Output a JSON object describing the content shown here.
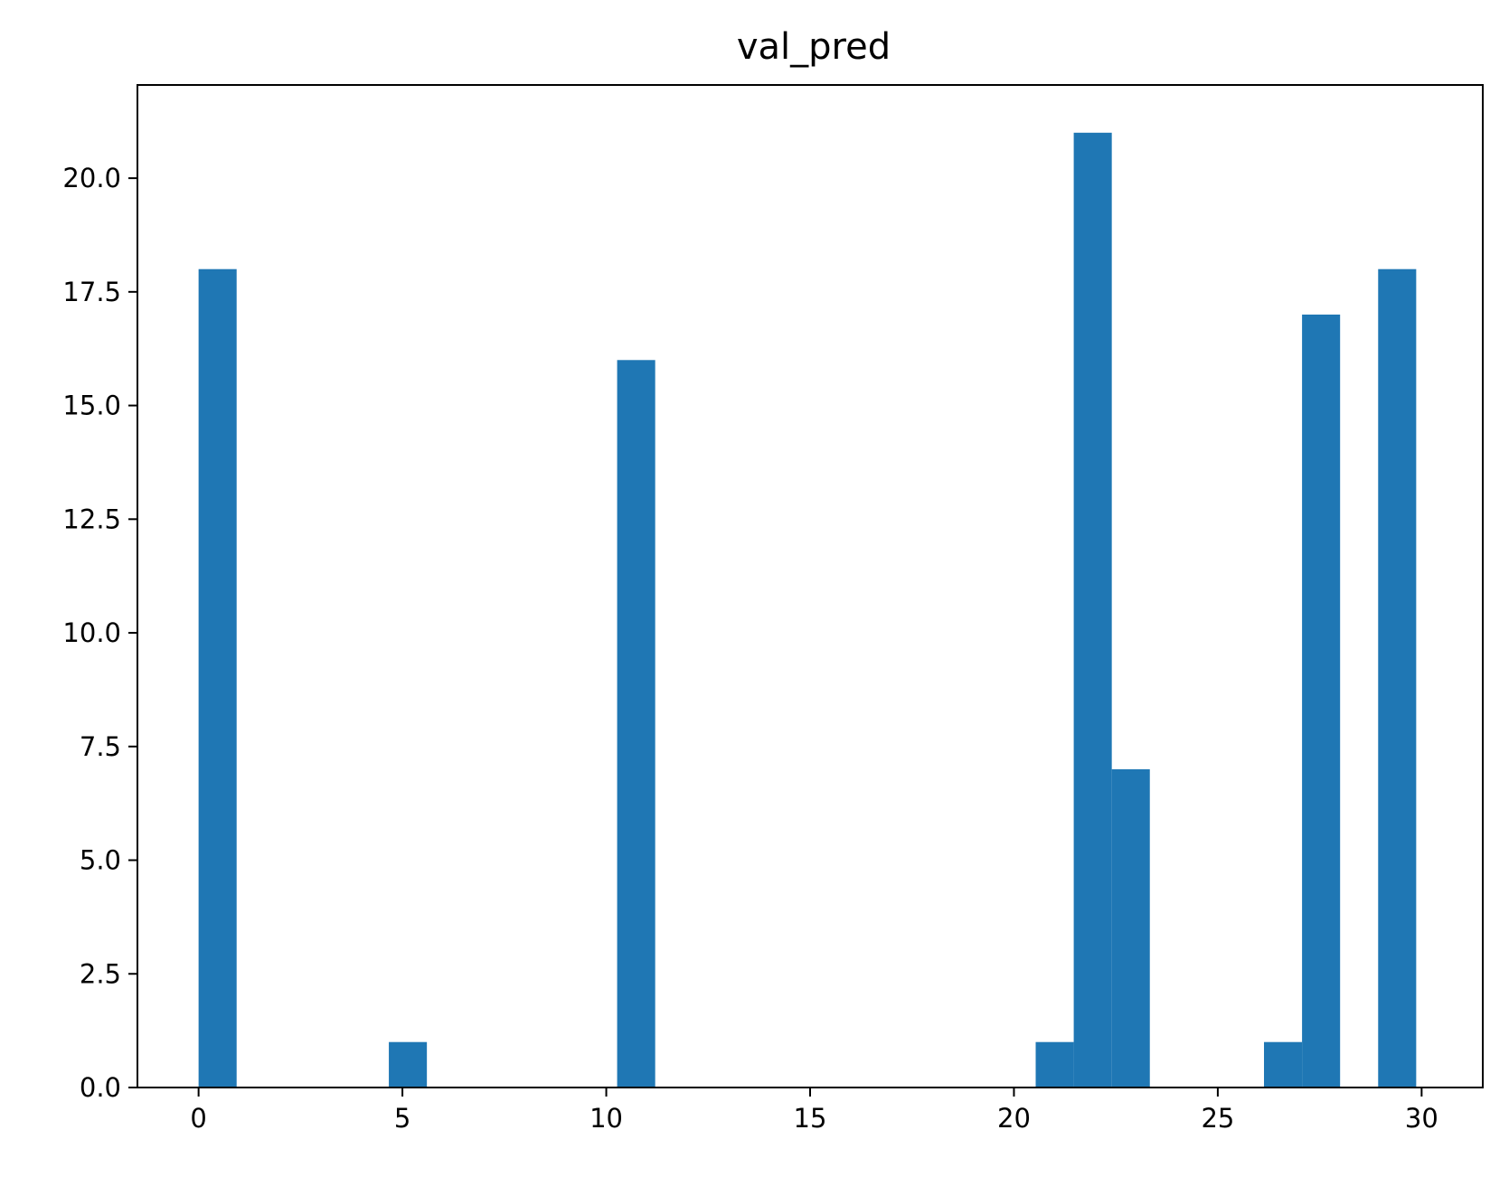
{
  "chart_data": {
    "type": "bar",
    "title": "val_pred",
    "xlabel": "",
    "ylabel": "",
    "bar_color": "#1f77b4",
    "xlim": [
      -1.5,
      31.5
    ],
    "ylim": [
      0,
      22.05
    ],
    "bins": [
      {
        "x0": 0.0,
        "x1": 0.9333,
        "count": 18
      },
      {
        "x0": 4.6667,
        "x1": 5.6,
        "count": 1
      },
      {
        "x0": 10.2667,
        "x1": 11.2,
        "count": 16
      },
      {
        "x0": 20.5333,
        "x1": 21.4667,
        "count": 1
      },
      {
        "x0": 21.4667,
        "x1": 22.4,
        "count": 21
      },
      {
        "x0": 22.4,
        "x1": 23.3333,
        "count": 7
      },
      {
        "x0": 26.1333,
        "x1": 27.0667,
        "count": 1
      },
      {
        "x0": 27.0667,
        "x1": 28.0,
        "count": 17
      },
      {
        "x0": 28.9333,
        "x1": 29.8667,
        "count": 18
      }
    ],
    "x_ticks": [
      {
        "value": 0,
        "label": "0"
      },
      {
        "value": 5,
        "label": "5"
      },
      {
        "value": 10,
        "label": "10"
      },
      {
        "value": 15,
        "label": "15"
      },
      {
        "value": 20,
        "label": "20"
      },
      {
        "value": 25,
        "label": "25"
      },
      {
        "value": 30,
        "label": "30"
      }
    ],
    "y_ticks": [
      {
        "value": 0,
        "label": "0.0"
      },
      {
        "value": 2.5,
        "label": "2.5"
      },
      {
        "value": 5,
        "label": "5.0"
      },
      {
        "value": 7.5,
        "label": "7.5"
      },
      {
        "value": 10,
        "label": "10.0"
      },
      {
        "value": 12.5,
        "label": "12.5"
      },
      {
        "value": 15,
        "label": "15.0"
      },
      {
        "value": 17.5,
        "label": "17.5"
      },
      {
        "value": 20,
        "label": "20.0"
      }
    ],
    "grid": false,
    "legend": "none"
  }
}
